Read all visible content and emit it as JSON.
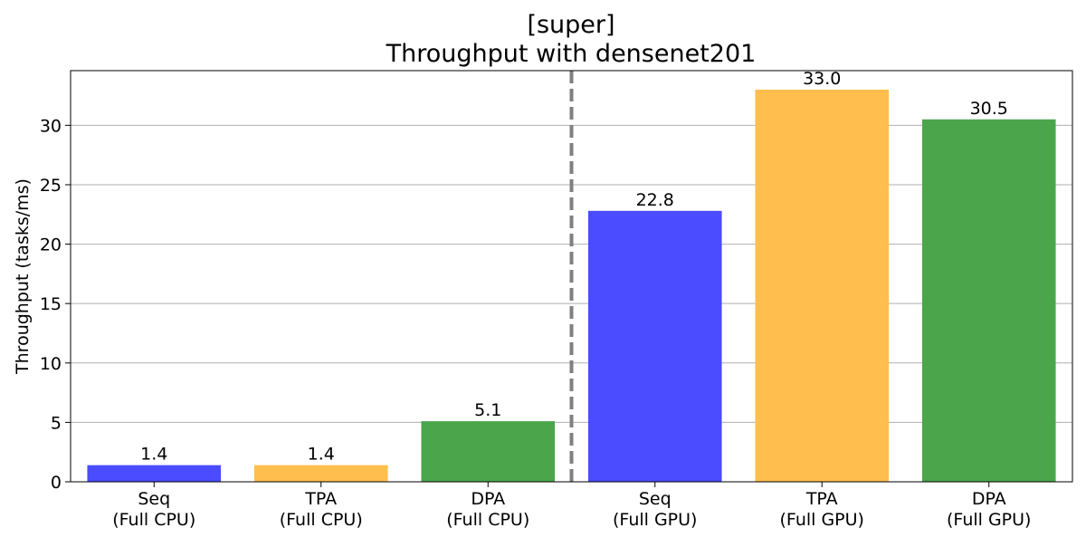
{
  "chart_data": {
    "type": "bar",
    "title_line1": "[super]",
    "title_line2": "Throughput with densenet201",
    "ylabel": "Throughput (tasks/ms)",
    "xlabel": "",
    "ylim": [
      0,
      34.6
    ],
    "yticks": [
      0,
      5,
      10,
      15,
      20,
      25,
      30
    ],
    "grid": "y-major",
    "categories": [
      [
        "Seq",
        "(Full CPU)"
      ],
      [
        "TPA",
        "(Full CPU)"
      ],
      [
        "DPA",
        "(Full CPU)"
      ],
      [
        "Seq",
        "(Full GPU)"
      ],
      [
        "TPA",
        "(Full GPU)"
      ],
      [
        "DPA",
        "(Full GPU)"
      ]
    ],
    "values": [
      1.4,
      1.4,
      5.1,
      22.8,
      33.0,
      30.5
    ],
    "value_labels": [
      "1.4",
      "1.4",
      "5.1",
      "22.8",
      "33.0",
      "30.5"
    ],
    "bar_colors": [
      "#4b4bff",
      "#ffbe4e",
      "#4ba64b",
      "#4b4bff",
      "#ffbe4e",
      "#4ba64b"
    ],
    "divider": {
      "style": "dashed",
      "color": "#808080",
      "between": [
        2,
        3
      ]
    }
  }
}
